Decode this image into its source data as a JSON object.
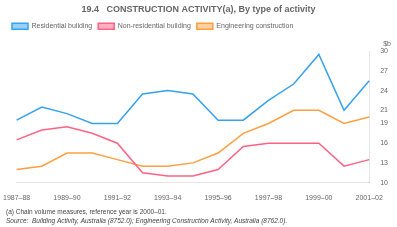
{
  "chart_data": {
    "type": "line",
    "title": "19.4   CONSTRUCTION ACTIVITY(a), By type of activity",
    "ylabel": "$b",
    "annotations": [
      "(a) Chain volume measures, reference year is 2000–01.",
      "Source:  Building Activity, Australia (8752.0); Engineering Construction Activity, Australia (8762.0)."
    ],
    "categories": [
      "1987–88",
      null,
      "1989–90",
      null,
      "1991–92",
      null,
      "1993–94",
      null,
      "1995–96",
      null,
      "1997–98",
      null,
      "1999–00",
      null,
      "2001–02"
    ],
    "series": [
      {
        "name": "Residential building",
        "values": [
          19.5,
          21.5,
          20.5,
          19.0,
          19.0,
          23.5,
          24.0,
          23.5,
          19.5,
          19.5,
          22.5,
          25.0,
          29.5,
          21.0,
          25.5
        ]
      },
      {
        "name": "Non-residential building",
        "values": [
          16.5,
          18.0,
          18.5,
          17.5,
          16.0,
          11.5,
          11.0,
          11.0,
          12.0,
          15.5,
          16.0,
          16.0,
          16.0,
          12.5,
          13.5
        ]
      },
      {
        "name": "Engineering construction",
        "values": [
          12.0,
          12.5,
          14.5,
          14.5,
          13.5,
          12.5,
          12.5,
          13.0,
          14.5,
          17.5,
          19.0,
          21.0,
          21.0,
          19.0,
          20.0
        ]
      }
    ],
    "ylim": [
      10,
      30
    ],
    "yticks": [
      10,
      13,
      16,
      19,
      21,
      24,
      27,
      30
    ],
    "grid": false,
    "legend": "top left"
  }
}
